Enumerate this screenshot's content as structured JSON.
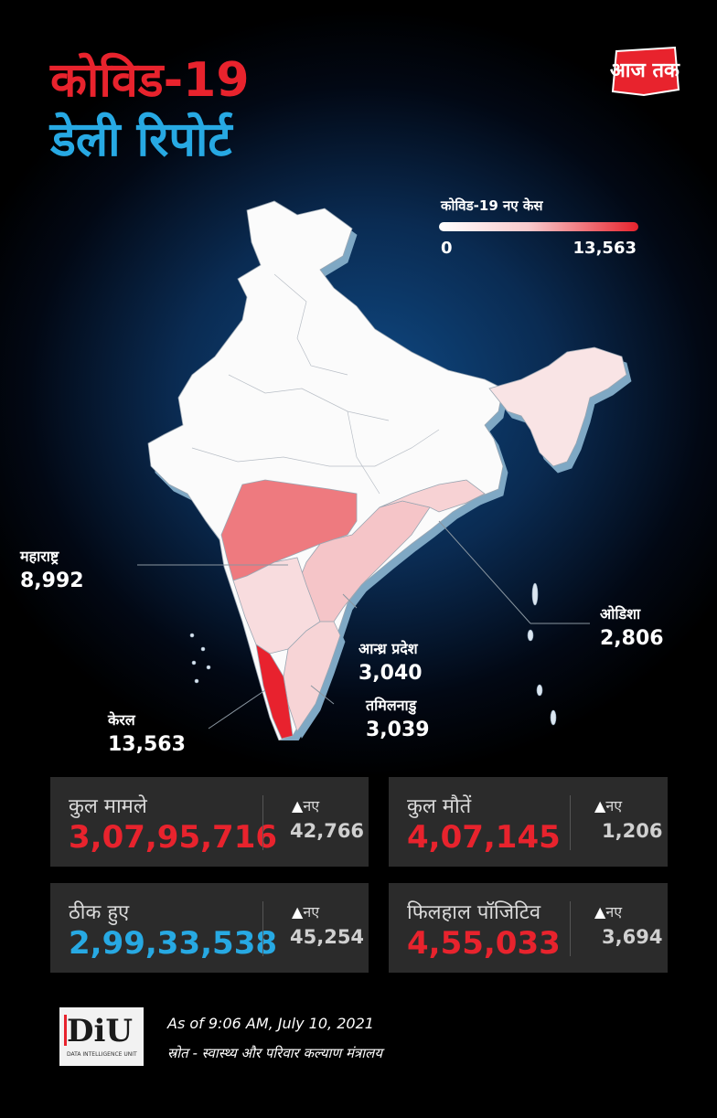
{
  "header": {
    "title_line1": "कोविड-19",
    "title_line2": "डेली रिपोर्ट",
    "logo_text": "आज तक"
  },
  "legend": {
    "title": "कोविड-19 नए केस",
    "min": "0",
    "max": "13,563",
    "color_low": "#ffffff",
    "color_high": "#e8232d"
  },
  "map_labels": [
    {
      "name": "महाराष्ट्र",
      "value": "8,992"
    },
    {
      "name": "केरल",
      "value": "13,563"
    },
    {
      "name": "आन्ध्र प्रदेश",
      "value": "3,040"
    },
    {
      "name": "तमिलनाडु",
      "value": "3,039"
    },
    {
      "name": "ओडिशा",
      "value": "2,806"
    }
  ],
  "stats": [
    {
      "label": "कुल मामले",
      "value": "3,07,95,716",
      "new_label": "नए",
      "new_value": "42,766",
      "color": "#e8232d"
    },
    {
      "label": "कुल मौतें",
      "value": "4,07,145",
      "new_label": "नए",
      "new_value": "1,206",
      "color": "#e8232d"
    },
    {
      "label": "ठीक हुए",
      "value": "2,99,33,538",
      "new_label": "नए",
      "new_value": "45,254",
      "color": "#27a9e3"
    },
    {
      "label": "फिलहाल पॉजिटिव",
      "value": "4,55,033",
      "new_label": "नए",
      "new_value": "3,694",
      "color": "#e8232d"
    }
  ],
  "footer": {
    "logo_text": "DiU",
    "logo_subtext": "DATA INTELLIGENCE UNIT",
    "timestamp": "As of 9:06 AM, July 10, 2021",
    "source": "स्रोत - स्वास्थ्य और परिवार कल्याण मंत्रालय"
  },
  "colors": {
    "accent_red": "#e8232d",
    "accent_blue": "#27a9e3",
    "card_bg": "#2b2b2b"
  }
}
